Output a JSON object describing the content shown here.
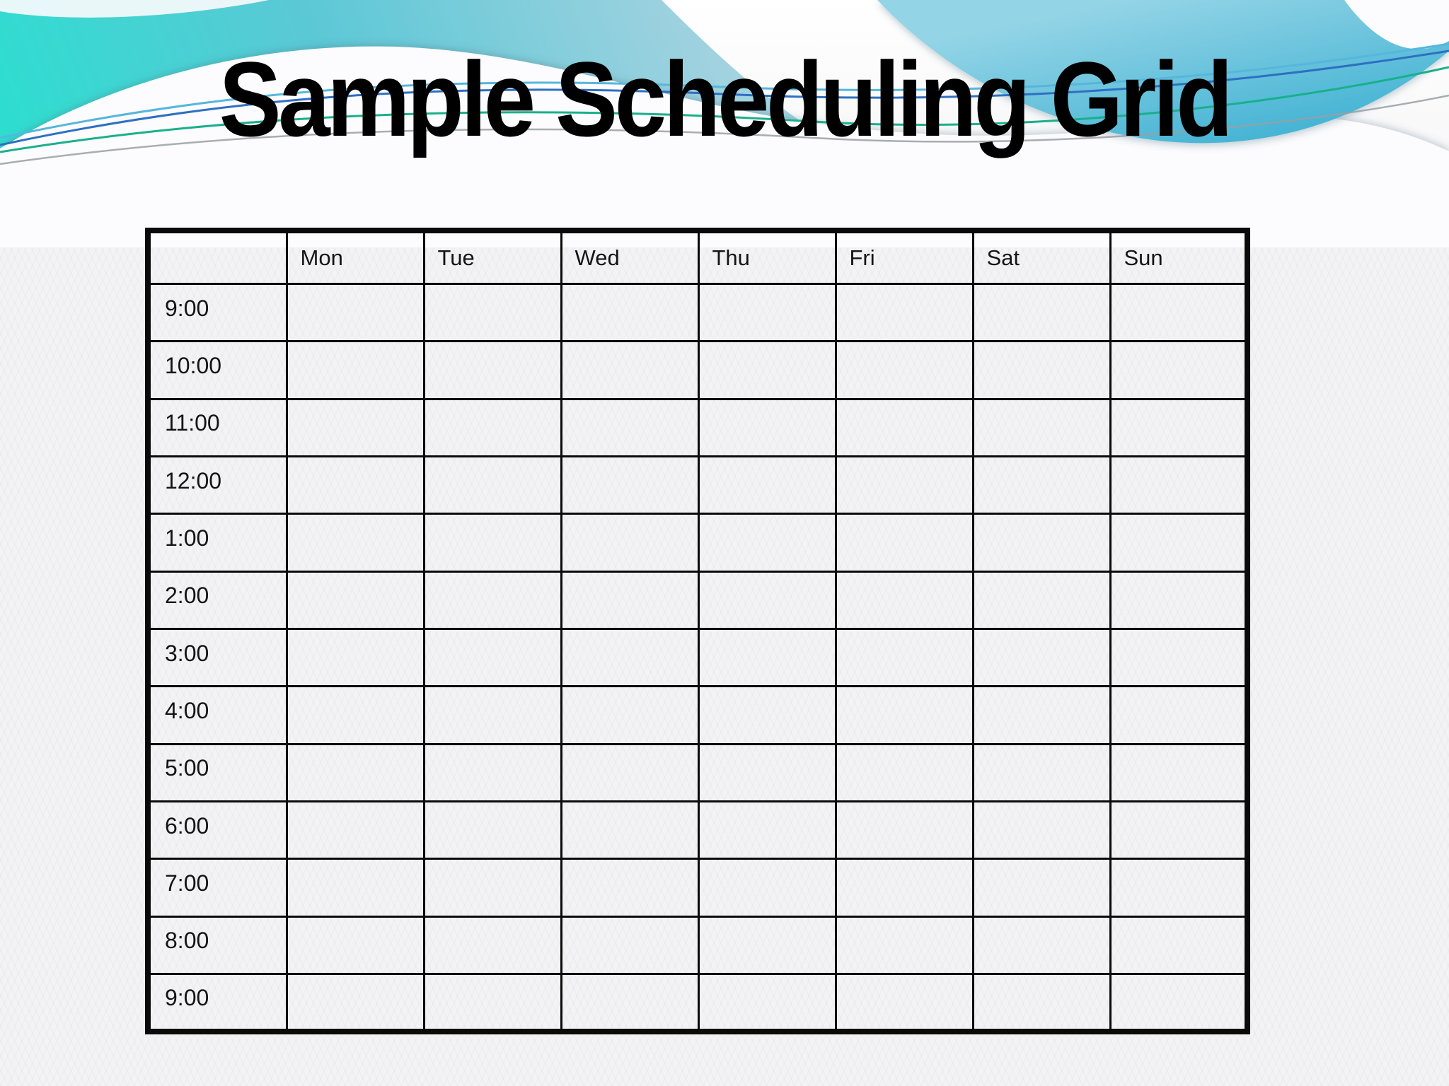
{
  "slide": {
    "title": "Sample Scheduling Grid"
  },
  "grid": {
    "days": [
      "Mon",
      "Tue",
      "Wed",
      "Thu",
      "Fri",
      "Sat",
      "Sun"
    ],
    "times": [
      "9:00",
      "10:00",
      "11:00",
      "12:00",
      "1:00",
      "2:00",
      "3:00",
      "4:00",
      "5:00",
      "6:00",
      "7:00",
      "8:00",
      "9:00"
    ]
  },
  "theme": {
    "background": "#f3f2f4",
    "grid_line_color": "#0a0a0a",
    "title_color": "#000000",
    "teal_vivid": "#27e0cf",
    "teal_mid": "#5cc8d6",
    "teal_pale": "#a3d2e0",
    "swoosh_light": "#93d4e6",
    "swoosh_deep": "#41b2d3",
    "line_cyan": "#56b6dc",
    "line_blue": "#2e6fc2",
    "line_green": "#18b08c",
    "line_gray": "#98a0a4",
    "band_white": "#fcfbfd"
  }
}
